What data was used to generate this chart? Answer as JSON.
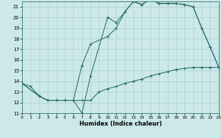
{
  "xlabel": "Humidex (Indice chaleur)",
  "bg_color": "#cce8e8",
  "grid_color": "#aacfcf",
  "line_color": "#2a6e6e",
  "xlim": [
    0,
    23
  ],
  "ylim": [
    11,
    21.5
  ],
  "yticks": [
    11,
    12,
    13,
    14,
    15,
    16,
    17,
    18,
    19,
    20,
    21
  ],
  "xticks": [
    0,
    1,
    2,
    3,
    4,
    5,
    6,
    7,
    8,
    9,
    10,
    11,
    12,
    13,
    14,
    15,
    16,
    17,
    18,
    19,
    20,
    21,
    22,
    23
  ],
  "line1_x": [
    0,
    1,
    2,
    3,
    4,
    5,
    6,
    7,
    8,
    10,
    11,
    12,
    13,
    14,
    15,
    16,
    17,
    18,
    19,
    20,
    21,
    22,
    23
  ],
  "line1_y": [
    13.8,
    13.5,
    12.6,
    12.2,
    12.2,
    12.2,
    12.2,
    11.0,
    14.5,
    20.0,
    19.5,
    20.5,
    21.5,
    21.2,
    21.7,
    21.3,
    21.3,
    21.3,
    21.2,
    21.0,
    19.0,
    17.2,
    15.3
  ],
  "line2_x": [
    0,
    2,
    3,
    4,
    5,
    6,
    7,
    8,
    10,
    11,
    12,
    13,
    14,
    15,
    16,
    17,
    18,
    19,
    20,
    21,
    22,
    23
  ],
  "line2_y": [
    13.8,
    12.6,
    12.2,
    12.2,
    12.2,
    12.2,
    15.5,
    17.5,
    18.2,
    19.0,
    20.5,
    21.5,
    21.2,
    21.7,
    21.3,
    21.3,
    21.3,
    21.2,
    21.0,
    19.0,
    17.2,
    15.3
  ],
  "line3_x": [
    0,
    2,
    3,
    4,
    5,
    6,
    7,
    8,
    9,
    10,
    11,
    12,
    13,
    14,
    15,
    16,
    17,
    18,
    19,
    20,
    21,
    22,
    23
  ],
  "line3_y": [
    13.8,
    12.6,
    12.2,
    12.2,
    12.2,
    12.2,
    12.2,
    12.2,
    13.0,
    13.3,
    13.5,
    13.8,
    14.0,
    14.2,
    14.5,
    14.7,
    14.9,
    15.1,
    15.2,
    15.3,
    15.3,
    15.3,
    15.3
  ]
}
